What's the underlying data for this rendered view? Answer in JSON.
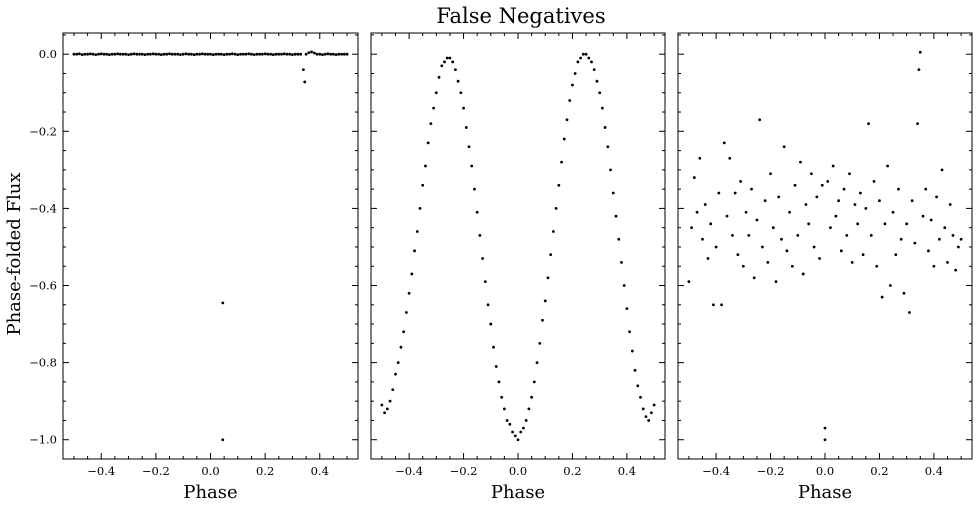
{
  "figure": {
    "title": "False Negatives",
    "ylabel": "Phase-folded Flux"
  },
  "chart_data": [
    {
      "type": "scatter",
      "xlabel": "Phase",
      "xlim": [
        -0.54,
        0.54
      ],
      "ylim": [
        -1.05,
        0.055
      ],
      "xticks": [
        -0.4,
        -0.2,
        0.0,
        0.2,
        0.4
      ],
      "yticks": [
        0.0,
        -0.2,
        -0.4,
        -0.6,
        -0.8,
        -1.0
      ],
      "xtick_labels": [
        "−0.4",
        "−0.2",
        "0.0",
        "0.2",
        "0.4"
      ],
      "ytick_labels": [
        "0.0",
        "−0.2",
        "−0.4",
        "−0.6",
        "−0.8",
        "−1.0"
      ],
      "marker_color": "#000000",
      "series": [
        {
          "x": [
            -0.5,
            -0.49,
            -0.48,
            -0.47,
            -0.46,
            -0.45,
            -0.44,
            -0.43,
            -0.42,
            -0.41,
            -0.4,
            -0.39,
            -0.38,
            -0.37,
            -0.36,
            -0.35,
            -0.34,
            -0.33,
            -0.32,
            -0.31,
            -0.3,
            -0.29,
            -0.28,
            -0.27,
            -0.26,
            -0.25,
            -0.24,
            -0.23,
            -0.22,
            -0.21,
            -0.2,
            -0.19,
            -0.18,
            -0.17,
            -0.16,
            -0.15,
            -0.14,
            -0.13,
            -0.12,
            -0.11,
            -0.1,
            -0.09,
            -0.08,
            -0.07,
            -0.06,
            -0.05,
            -0.04,
            -0.03,
            -0.02,
            -0.01,
            0.0,
            0.01,
            0.02,
            0.03,
            0.04,
            0.045,
            0.045,
            0.05,
            0.06,
            0.07,
            0.08,
            0.09,
            0.1,
            0.11,
            0.12,
            0.13,
            0.14,
            0.15,
            0.16,
            0.17,
            0.18,
            0.19,
            0.2,
            0.21,
            0.22,
            0.23,
            0.24,
            0.25,
            0.26,
            0.27,
            0.28,
            0.29,
            0.3,
            0.31,
            0.32,
            0.33,
            0.34,
            0.345,
            0.35,
            0.36,
            0.37,
            0.38,
            0.39,
            0.4,
            0.41,
            0.42,
            0.43,
            0.44,
            0.45,
            0.46,
            0.47,
            0.48,
            0.49,
            0.5
          ],
          "y": [
            0.0,
            0.0,
            0.001,
            -0.001,
            0.0,
            0.0,
            0.001,
            0.0,
            -0.001,
            0.0,
            0.001,
            0.0,
            0.0,
            -0.001,
            0.0,
            0.0,
            0.001,
            0.0,
            0.0,
            0.0,
            -0.001,
            0.0,
            0.001,
            0.0,
            0.0,
            0.0,
            -0.001,
            0.0,
            0.0,
            0.001,
            0.0,
            0.0,
            -0.001,
            0.0,
            0.0,
            0.001,
            0.0,
            0.0,
            0.0,
            -0.001,
            0.0,
            0.001,
            0.0,
            0.0,
            -0.001,
            0.0,
            0.0,
            0.001,
            0.0,
            0.0,
            0.0,
            -0.001,
            0.0,
            0.0,
            0.0,
            -0.645,
            -1.0,
            -0.001,
            0.0,
            0.0,
            0.001,
            0.0,
            -0.001,
            0.0,
            0.0,
            0.0,
            0.001,
            0.0,
            -0.001,
            0.0,
            0.0,
            0.0,
            0.001,
            0.0,
            0.0,
            -0.001,
            0.0,
            0.0,
            0.0,
            0.001,
            0.0,
            0.0,
            -0.001,
            0.0,
            0.0,
            0.0,
            -0.04,
            -0.072,
            0.0,
            0.004,
            0.006,
            0.003,
            0.0,
            0.0,
            -0.001,
            0.0,
            0.001,
            0.0,
            0.0,
            -0.001,
            0.0,
            0.0,
            0.0,
            0.0
          ]
        }
      ]
    },
    {
      "type": "scatter",
      "xlabel": "Phase",
      "xlim": [
        -0.54,
        0.54
      ],
      "ylim": [
        -1.05,
        0.055
      ],
      "xticks": [
        -0.4,
        -0.2,
        0.0,
        0.2,
        0.4
      ],
      "yticks": [
        0.0,
        -0.2,
        -0.4,
        -0.6,
        -0.8,
        -1.0
      ],
      "xtick_labels": [
        "−0.4",
        "−0.2",
        "0.0",
        "0.2",
        "0.4"
      ],
      "marker_color": "#000000",
      "series": [
        {
          "x": [
            -0.5,
            -0.49,
            -0.48,
            -0.47,
            -0.46,
            -0.45,
            -0.44,
            -0.43,
            -0.42,
            -0.41,
            -0.4,
            -0.39,
            -0.38,
            -0.37,
            -0.36,
            -0.35,
            -0.34,
            -0.33,
            -0.32,
            -0.31,
            -0.3,
            -0.29,
            -0.28,
            -0.27,
            -0.26,
            -0.25,
            -0.24,
            -0.23,
            -0.22,
            -0.21,
            -0.2,
            -0.19,
            -0.18,
            -0.17,
            -0.16,
            -0.15,
            -0.14,
            -0.13,
            -0.12,
            -0.11,
            -0.1,
            -0.09,
            -0.08,
            -0.07,
            -0.06,
            -0.05,
            -0.04,
            -0.03,
            -0.02,
            -0.01,
            0.0,
            0.01,
            0.02,
            0.03,
            0.04,
            0.05,
            0.06,
            0.07,
            0.08,
            0.09,
            0.1,
            0.11,
            0.12,
            0.13,
            0.14,
            0.15,
            0.16,
            0.17,
            0.18,
            0.19,
            0.2,
            0.21,
            0.22,
            0.23,
            0.24,
            0.25,
            0.26,
            0.27,
            0.28,
            0.29,
            0.3,
            0.31,
            0.32,
            0.33,
            0.34,
            0.35,
            0.36,
            0.37,
            0.38,
            0.39,
            0.4,
            0.41,
            0.42,
            0.43,
            0.44,
            0.45,
            0.46,
            0.47,
            0.48,
            0.49,
            0.5
          ],
          "y": [
            -0.91,
            -0.93,
            -0.92,
            -0.9,
            -0.87,
            -0.83,
            -0.8,
            -0.76,
            -0.72,
            -0.67,
            -0.62,
            -0.57,
            -0.51,
            -0.46,
            -0.4,
            -0.34,
            -0.29,
            -0.23,
            -0.18,
            -0.14,
            -0.1,
            -0.06,
            -0.03,
            -0.02,
            -0.01,
            -0.01,
            -0.02,
            -0.04,
            -0.07,
            -0.1,
            -0.14,
            -0.19,
            -0.24,
            -0.29,
            -0.35,
            -0.41,
            -0.47,
            -0.53,
            -0.59,
            -0.65,
            -0.7,
            -0.76,
            -0.81,
            -0.85,
            -0.89,
            -0.92,
            -0.95,
            -0.96,
            -0.98,
            -0.99,
            -1.0,
            -0.98,
            -0.97,
            -0.95,
            -0.92,
            -0.89,
            -0.85,
            -0.8,
            -0.75,
            -0.69,
            -0.64,
            -0.58,
            -0.52,
            -0.46,
            -0.4,
            -0.34,
            -0.28,
            -0.22,
            -0.17,
            -0.12,
            -0.08,
            -0.05,
            -0.02,
            -0.01,
            0.0,
            0.0,
            -0.01,
            -0.02,
            -0.04,
            -0.07,
            -0.1,
            -0.14,
            -0.19,
            -0.24,
            -0.3,
            -0.36,
            -0.42,
            -0.48,
            -0.54,
            -0.6,
            -0.66,
            -0.72,
            -0.77,
            -0.82,
            -0.86,
            -0.89,
            -0.92,
            -0.94,
            -0.95,
            -0.93,
            -0.91
          ]
        }
      ]
    },
    {
      "type": "scatter",
      "xlabel": "Phase",
      "xlim": [
        -0.54,
        0.54
      ],
      "ylim": [
        -1.05,
        0.055
      ],
      "xticks": [
        -0.4,
        -0.2,
        0.0,
        0.2,
        0.4
      ],
      "yticks": [
        0.0,
        -0.2,
        -0.4,
        -0.6,
        -0.8,
        -1.0
      ],
      "xtick_labels": [
        "−0.4",
        "−0.2",
        "0.0",
        "0.2",
        "0.4"
      ],
      "marker_color": "#000000",
      "series": [
        {
          "x": [
            -0.5,
            -0.49,
            -0.48,
            -0.47,
            -0.46,
            -0.45,
            -0.44,
            -0.43,
            -0.42,
            -0.41,
            -0.4,
            -0.39,
            -0.38,
            -0.37,
            -0.36,
            -0.35,
            -0.34,
            -0.33,
            -0.32,
            -0.31,
            -0.3,
            -0.29,
            -0.28,
            -0.27,
            -0.26,
            -0.25,
            -0.24,
            -0.23,
            -0.22,
            -0.21,
            -0.2,
            -0.19,
            -0.18,
            -0.17,
            -0.16,
            -0.15,
            -0.14,
            -0.13,
            -0.12,
            -0.11,
            -0.1,
            -0.09,
            -0.08,
            -0.07,
            -0.06,
            -0.05,
            -0.04,
            -0.03,
            -0.02,
            -0.01,
            0.0,
            0.0,
            0.01,
            0.02,
            0.03,
            0.04,
            0.05,
            0.06,
            0.07,
            0.08,
            0.09,
            0.1,
            0.11,
            0.12,
            0.13,
            0.14,
            0.15,
            0.16,
            0.17,
            0.18,
            0.19,
            0.2,
            0.21,
            0.22,
            0.23,
            0.24,
            0.25,
            0.26,
            0.27,
            0.28,
            0.29,
            0.3,
            0.31,
            0.32,
            0.33,
            0.34,
            0.345,
            0.35,
            0.36,
            0.37,
            0.38,
            0.39,
            0.4,
            0.41,
            0.42,
            0.43,
            0.44,
            0.45,
            0.46,
            0.47,
            0.48,
            0.49,
            0.5
          ],
          "y": [
            -0.59,
            -0.45,
            -0.32,
            -0.41,
            -0.27,
            -0.48,
            -0.39,
            -0.53,
            -0.44,
            -0.65,
            -0.5,
            -0.36,
            -0.65,
            -0.23,
            -0.42,
            -0.27,
            -0.47,
            -0.36,
            -0.52,
            -0.33,
            -0.55,
            -0.41,
            -0.47,
            -0.35,
            -0.58,
            -0.43,
            -0.17,
            -0.5,
            -0.38,
            -0.54,
            -0.31,
            -0.45,
            -0.59,
            -0.37,
            -0.48,
            -0.24,
            -0.51,
            -0.41,
            -0.55,
            -0.34,
            -0.47,
            -0.28,
            -0.57,
            -0.39,
            -0.44,
            -0.31,
            -0.5,
            -0.37,
            -0.53,
            -0.34,
            -0.97,
            -1.0,
            -0.33,
            -0.45,
            -0.29,
            -0.42,
            -0.38,
            -0.51,
            -0.35,
            -0.47,
            -0.31,
            -0.54,
            -0.39,
            -0.44,
            -0.36,
            -0.52,
            -0.4,
            -0.18,
            -0.47,
            -0.33,
            -0.55,
            -0.38,
            -0.63,
            -0.44,
            -0.29,
            -0.6,
            -0.41,
            -0.52,
            -0.35,
            -0.48,
            -0.62,
            -0.44,
            -0.67,
            -0.38,
            -0.49,
            -0.18,
            -0.04,
            0.005,
            -0.42,
            -0.35,
            -0.51,
            -0.43,
            -0.55,
            -0.37,
            -0.48,
            -0.3,
            -0.45,
            -0.54,
            -0.39,
            -0.47,
            -0.56,
            -0.5,
            -0.48
          ]
        }
      ]
    }
  ]
}
